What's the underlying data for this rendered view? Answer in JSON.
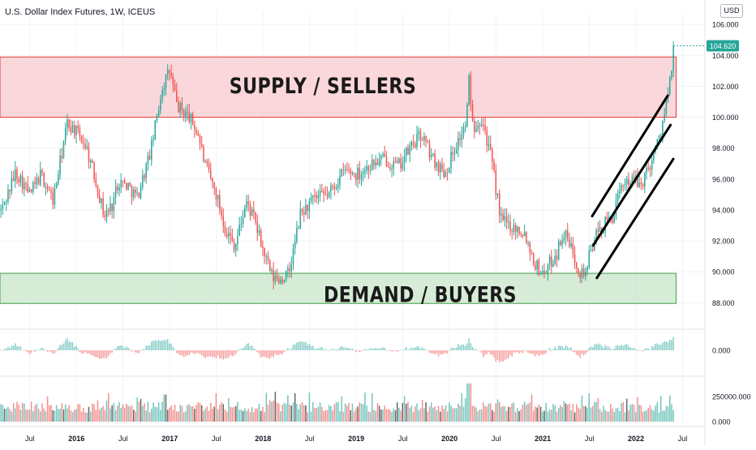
{
  "header": {
    "title": "U.S. Dollar Index Futures, 1W, ICEUS",
    "currency_button": "USD"
  },
  "colors": {
    "up": "#26a69a",
    "down": "#ef5350",
    "supply_fill": "#f8c9ce",
    "supply_border": "#e53935",
    "demand_fill": "#c8e6c9",
    "demand_border": "#43a047",
    "price_badge": "#26a69a",
    "channel": "#000000"
  },
  "chart_data": [
    {
      "type": "candlestick",
      "title": "U.S. Dollar Index Futures, 1W, ICEUS",
      "ylim": [
        86.6,
        106.8
      ],
      "y_ticks": [
        "106.000",
        "104.000",
        "102.000",
        "100.000",
        "98.000",
        "96.000",
        "94.000",
        "92.000",
        "90.000",
        "88.000"
      ],
      "y_tick_values": [
        106,
        104,
        102,
        100,
        98,
        96,
        94,
        92,
        90,
        88
      ],
      "x_ticks": [
        "Jul",
        "2016",
        "Jul",
        "2017",
        "Jul",
        "2018",
        "Jul",
        "2019",
        "Jul",
        "2020",
        "Jul",
        "2021",
        "Jul",
        "2022",
        "Jul"
      ],
      "x_tick_dates": [
        2015.5,
        2016.0,
        2016.5,
        2017.0,
        2017.5,
        2018.0,
        2018.5,
        2019.0,
        2019.5,
        2020.0,
        2020.5,
        2021.0,
        2021.5,
        2022.0,
        2022.5
      ],
      "x_range": [
        2015.18,
        2022.73
      ],
      "last_price_label": "104.620",
      "last_price": 104.62,
      "price_path": [
        [
          2015.2,
          94.0
        ],
        [
          2015.35,
          96.5
        ],
        [
          2015.5,
          95.0
        ],
        [
          2015.62,
          96.3
        ],
        [
          2015.75,
          94.6
        ],
        [
          2015.9,
          99.6
        ],
        [
          2015.98,
          99.2
        ],
        [
          2016.1,
          98.2
        ],
        [
          2016.2,
          96.0
        ],
        [
          2016.3,
          93.6
        ],
        [
          2016.38,
          94.3
        ],
        [
          2016.45,
          95.9
        ],
        [
          2016.55,
          95.6
        ],
        [
          2016.65,
          94.8
        ],
        [
          2016.8,
          97.9
        ],
        [
          2016.92,
          102.0
        ],
        [
          2017.0,
          103.0
        ],
        [
          2017.08,
          100.7
        ],
        [
          2017.2,
          100.1
        ],
        [
          2017.3,
          99.0
        ],
        [
          2017.38,
          96.9
        ],
        [
          2017.5,
          95.0
        ],
        [
          2017.6,
          92.7
        ],
        [
          2017.7,
          91.7
        ],
        [
          2017.82,
          94.5
        ],
        [
          2017.9,
          93.5
        ],
        [
          2018.0,
          91.4
        ],
        [
          2018.1,
          89.6
        ],
        [
          2018.18,
          89.5
        ],
        [
          2018.28,
          89.9
        ],
        [
          2018.4,
          93.7
        ],
        [
          2018.55,
          94.7
        ],
        [
          2018.7,
          95.0
        ],
        [
          2018.88,
          96.6
        ],
        [
          2019.0,
          96.3
        ],
        [
          2019.15,
          96.9
        ],
        [
          2019.3,
          97.3
        ],
        [
          2019.45,
          96.8
        ],
        [
          2019.6,
          98.2
        ],
        [
          2019.7,
          98.9
        ],
        [
          2019.82,
          97.3
        ],
        [
          2019.95,
          96.4
        ],
        [
          2020.05,
          97.9
        ],
        [
          2020.18,
          99.6
        ],
        [
          2020.21,
          102.5
        ],
        [
          2020.25,
          99.4
        ],
        [
          2020.35,
          100.0
        ],
        [
          2020.45,
          97.2
        ],
        [
          2020.55,
          93.4
        ],
        [
          2020.68,
          92.9
        ],
        [
          2020.8,
          92.6
        ],
        [
          2020.92,
          90.5
        ],
        [
          2021.0,
          89.9
        ],
        [
          2021.15,
          91.2
        ],
        [
          2021.22,
          92.6
        ],
        [
          2021.33,
          91.2
        ],
        [
          2021.4,
          90.0
        ],
        [
          2021.45,
          89.9
        ],
        [
          2021.55,
          92.1
        ],
        [
          2021.65,
          93.0
        ],
        [
          2021.75,
          93.6
        ],
        [
          2021.88,
          96.0
        ],
        [
          2021.98,
          95.9
        ],
        [
          2022.05,
          95.6
        ],
        [
          2022.15,
          97.0
        ],
        [
          2022.25,
          98.7
        ],
        [
          2022.33,
          101.0
        ],
        [
          2022.4,
          103.5
        ],
        [
          2022.42,
          104.62
        ]
      ],
      "annotations": [
        {
          "type": "zone",
          "label": "SUPPLY / SELLERS",
          "y_top": 103.9,
          "y_bottom": 100.0,
          "x_start": 2015.18,
          "x_end": 2022.43,
          "color": "supply"
        },
        {
          "type": "zone",
          "label": "DEMAND / BUYERS",
          "y_top": 89.9,
          "y_bottom": 87.95,
          "x_start": 2015.18,
          "x_end": 2022.43,
          "color": "demand"
        }
      ],
      "channel_lines": [
        {
          "from": [
            2021.53,
            93.6
          ],
          "to": [
            2022.34,
            101.4
          ]
        },
        {
          "from": [
            2021.54,
            91.7
          ],
          "to": [
            2022.37,
            99.5
          ]
        },
        {
          "from": [
            2021.58,
            89.6
          ],
          "to": [
            2022.4,
            97.3
          ]
        }
      ]
    },
    {
      "type": "bar",
      "name": "momentum",
      "y_ticks": [
        "0.000"
      ],
      "y_tick_values": [
        0
      ]
    },
    {
      "type": "bar",
      "name": "volume",
      "y_ticks": [
        "250000.000",
        "0.000"
      ],
      "y_tick_values": [
        250000,
        0
      ],
      "ylim": [
        0,
        420000
      ]
    }
  ]
}
